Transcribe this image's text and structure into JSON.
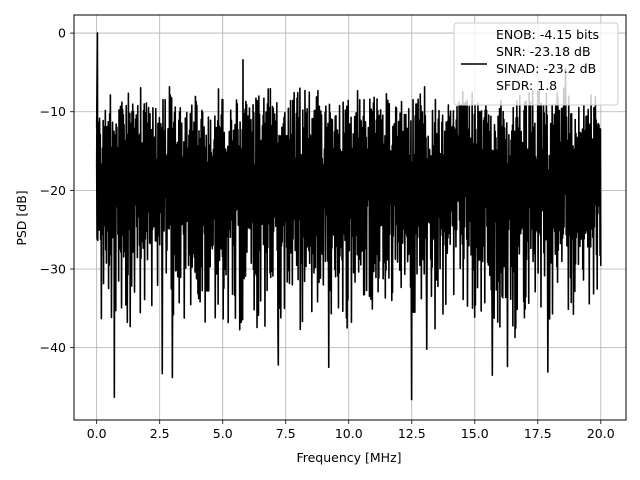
{
  "chart_data": {
    "type": "line",
    "title": "",
    "xlabel": "Frequency [MHz]",
    "ylabel": "PSD [dB]",
    "xlim": [
      -0.9,
      21.0
    ],
    "ylim": [
      -49.2,
      2.3
    ],
    "grid": true,
    "xticks": [
      0.0,
      2.5,
      5.0,
      7.5,
      10.0,
      12.5,
      15.0,
      17.5,
      20.0
    ],
    "xtick_labels": [
      "0.0",
      "2.5",
      "5.0",
      "7.5",
      "10.0",
      "12.5",
      "15.0",
      "17.5",
      "20.0"
    ],
    "yticks": [
      0,
      -10,
      -20,
      -30,
      -40
    ],
    "ytick_labels": [
      "0",
      "−10",
      "−20",
      "−30",
      "−40"
    ],
    "series": [
      {
        "name": "ENOB: -4.15 bits\nSNR: -23.18 dB\nSINAD: -23.2 dB\nSFDR: 1.8",
        "color": "#000000",
        "x_range": [
          0.0,
          20.0
        ],
        "n_points": 1400,
        "peak": {
          "x": 0.03,
          "y": 0.0
        },
        "floor_mean_db": -15.5,
        "upper_envelope_db": -6.5,
        "notable_points": [
          {
            "x": 0.03,
            "y": 0.0
          },
          {
            "x": 0.7,
            "y": -46.3
          },
          {
            "x": 2.6,
            "y": -43.3
          },
          {
            "x": 3.0,
            "y": -43.8
          },
          {
            "x": 5.8,
            "y": -3.4
          },
          {
            "x": 7.2,
            "y": -42.2
          },
          {
            "x": 9.2,
            "y": -42.5
          },
          {
            "x": 12.5,
            "y": -46.6
          },
          {
            "x": 13.1,
            "y": -40.2
          },
          {
            "x": 15.7,
            "y": -43.5
          },
          {
            "x": 16.3,
            "y": -42.4
          },
          {
            "x": 17.9,
            "y": -43.1
          },
          {
            "x": 18.6,
            "y": -4.5
          }
        ]
      }
    ],
    "legend": {
      "placement": "top-right",
      "lines": [
        "ENOB: -4.15 bits",
        "SNR: -23.18 dB",
        "SINAD: -23.2 dB",
        "SFDR: 1.8"
      ]
    }
  }
}
